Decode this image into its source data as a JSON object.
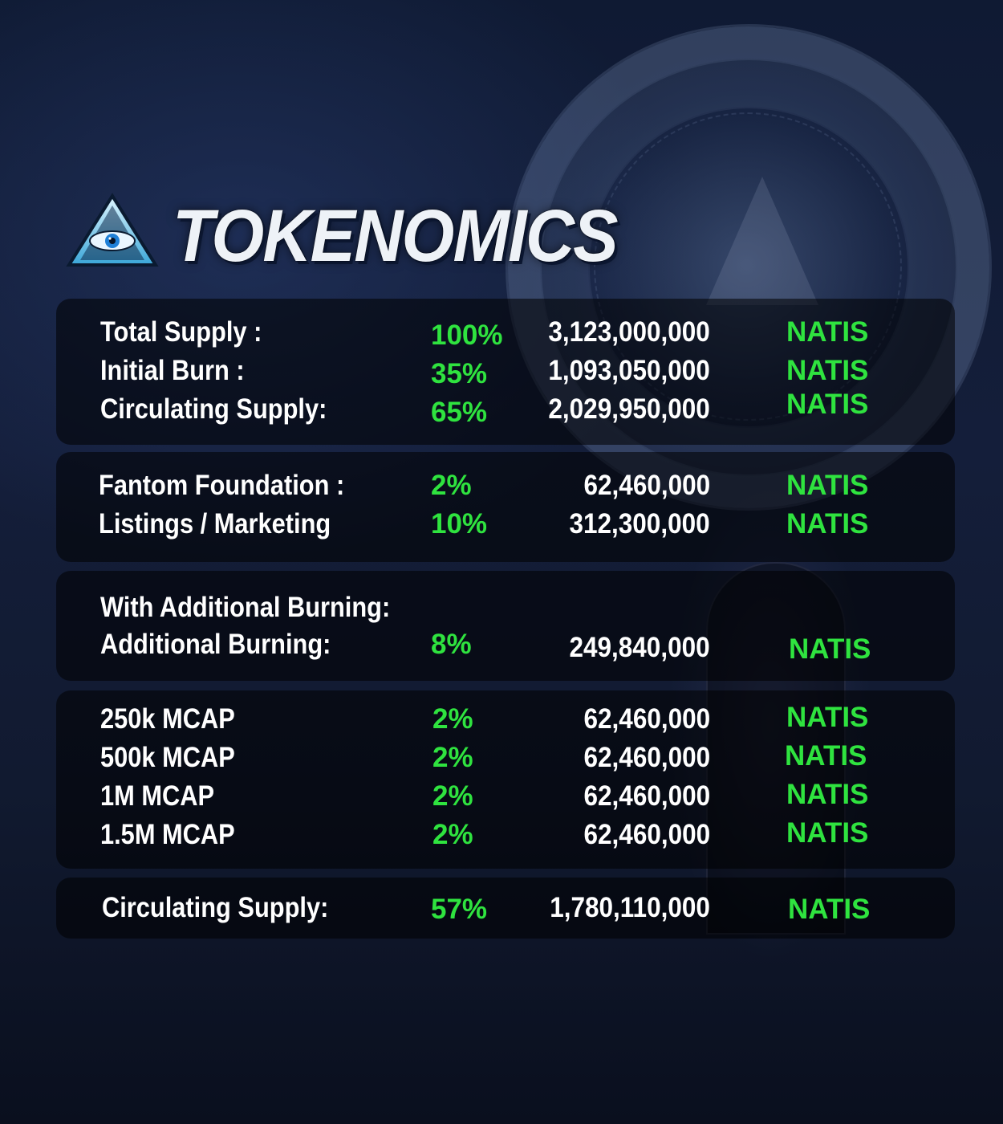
{
  "title": "TOKENOMICS",
  "icons": {
    "logo": "all-seeing-eye-pyramid-icon"
  },
  "colors": {
    "accent_green": "#2fe33f",
    "text": "#ffffff",
    "panel": "rgba(0,0,0,0.55)"
  },
  "sections": [
    {
      "rows": [
        {
          "label": "Total Supply :",
          "percent": "100%",
          "amount": "3,123,000,000",
          "token": "NATIS"
        },
        {
          "label": "Initial Burn :",
          "percent": "35%",
          "amount": "1,093,050,000",
          "token": "NATIS"
        },
        {
          "label": "Circulating Supply:",
          "percent": "65%",
          "amount": "2,029,950,000",
          "token": "NATIS"
        }
      ]
    },
    {
      "rows": [
        {
          "label": "Fantom Foundation :",
          "percent": "2%",
          "amount": "62,460,000",
          "token": "NATIS"
        },
        {
          "label": "Listings / Marketing",
          "percent": "10%",
          "amount": "312,300,000",
          "token": "NATIS"
        }
      ]
    },
    {
      "heading": "With Additional Burning:",
      "rows": [
        {
          "label": "Additional  Burning:",
          "percent": "8%",
          "amount": "249,840,000",
          "token": "NATIS"
        }
      ]
    },
    {
      "rows": [
        {
          "label": "250k MCAP",
          "percent": "2%",
          "amount": "62,460,000",
          "token": "NATIS"
        },
        {
          "label": "500k MCAP",
          "percent": "2%",
          "amount": "62,460,000",
          "token": "NATIS"
        },
        {
          "label": "1M MCAP",
          "percent": "2%",
          "amount": "62,460,000",
          "token": "NATIS"
        },
        {
          "label": "1.5M MCAP",
          "percent": "2%",
          "amount": "62,460,000",
          "token": "NATIS"
        }
      ]
    },
    {
      "rows": [
        {
          "label": "Circulating Supply:",
          "percent": "57%",
          "amount": "1,780,110,000",
          "token": "NATIS"
        }
      ]
    }
  ]
}
